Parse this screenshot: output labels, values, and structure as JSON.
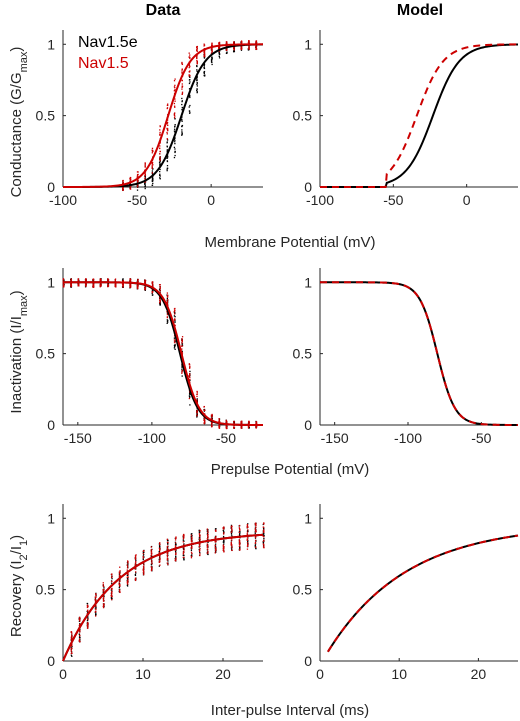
{
  "columns": {
    "left_title": "Data",
    "right_title": "Model"
  },
  "colors": {
    "nav15e": "#000000",
    "nav15": "#cc0000",
    "axis": "#262626"
  },
  "legend": {
    "items": [
      "Nav1.5e",
      "Nav1.5"
    ],
    "placement": "top-left of top-left panel"
  },
  "rows": [
    {
      "xlabel": "Membrane Potential (mV)"
    },
    {
      "xlabel": "Prepulse Potential (mV)"
    },
    {
      "xlabel": "Inter-pulse Interval (ms)"
    }
  ],
  "chart_data": [
    {
      "id": "activation-data",
      "type": "scatter",
      "title": "Data",
      "ylabel": "Conductance (G/G",
      "ylabel_sub": "max",
      "ylabel_suffix": ")",
      "xlim": [
        -100,
        35
      ],
      "ylim": [
        0,
        1.1
      ],
      "xticks": [
        -100,
        -50,
        0
      ],
      "yticks": [
        0,
        0.5,
        1
      ],
      "series": [
        {
          "name": "Nav1.5e",
          "fit": {
            "v_half": -20,
            "slope": 8
          },
          "scatter_x": [
            -60,
            -55,
            -50,
            -45,
            -40,
            -35,
            -30,
            -25,
            -20,
            -15,
            -10,
            -5,
            0,
            5,
            10,
            15,
            20,
            25,
            30
          ]
        },
        {
          "name": "Nav1.5",
          "fit": {
            "v_half": -29,
            "slope": 7.5
          },
          "scatter_x": [
            -60,
            -55,
            -50,
            -45,
            -40,
            -35,
            -30,
            -25,
            -20,
            -15,
            -10,
            -5,
            0,
            5,
            10,
            15,
            20,
            25,
            30
          ]
        }
      ]
    },
    {
      "id": "activation-model",
      "type": "line",
      "title": "Model",
      "xlim": [
        -100,
        35
      ],
      "ylim": [
        0,
        1.1
      ],
      "xticks": [
        -100,
        -50,
        0
      ],
      "yticks": [
        0,
        0.5,
        1
      ],
      "series": [
        {
          "name": "Nav1.5e",
          "dash": false,
          "fit": {
            "v_half": -23,
            "slope": 9,
            "onset": -55
          }
        },
        {
          "name": "Nav1.5",
          "dash": true,
          "fit": {
            "v_half": -34,
            "slope": 9,
            "onset": -55
          }
        }
      ]
    },
    {
      "id": "inactivation-data",
      "type": "scatter",
      "ylabel": "Inactivation (I/I",
      "ylabel_sub": "max",
      "ylabel_suffix": ")",
      "xlim": [
        -160,
        -25
      ],
      "ylim": [
        0,
        1.1
      ],
      "xticks": [
        -150,
        -100,
        -50
      ],
      "yticks": [
        0,
        0.5,
        1
      ],
      "series": [
        {
          "name": "Nav1.5e",
          "fit": {
            "v_half": -81,
            "slope": 6
          },
          "scatter_x": [
            -160,
            -155,
            -150,
            -145,
            -140,
            -135,
            -130,
            -125,
            -120,
            -115,
            -110,
            -105,
            -100,
            -95,
            -90,
            -85,
            -80,
            -75,
            -70,
            -65,
            -60,
            -55,
            -50,
            -45,
            -40,
            -35,
            -30
          ]
        },
        {
          "name": "Nav1.5",
          "fit": {
            "v_half": -80,
            "slope": 6
          },
          "scatter_x": [
            -160,
            -155,
            -150,
            -145,
            -140,
            -135,
            -130,
            -125,
            -120,
            -115,
            -110,
            -105,
            -100,
            -95,
            -90,
            -85,
            -80,
            -75,
            -70,
            -65,
            -60,
            -55,
            -50,
            -45,
            -40,
            -35,
            -30
          ]
        }
      ]
    },
    {
      "id": "inactivation-model",
      "type": "line",
      "xlim": [
        -160,
        -25
      ],
      "ylim": [
        0,
        1.1
      ],
      "xticks": [
        -150,
        -100,
        -50
      ],
      "yticks": [
        0,
        0.5,
        1
      ],
      "series": [
        {
          "name": "Nav1.5e",
          "dash": false,
          "fit": {
            "v_half": -80,
            "slope": 6
          }
        },
        {
          "name": "Nav1.5",
          "dash": true,
          "fit": {
            "v_half": -80,
            "slope": 6
          }
        }
      ]
    },
    {
      "id": "recovery-data",
      "type": "scatter",
      "ylabel": "Recovery (I",
      "ylabel_sub": "2",
      "ylabel_mid": "/I",
      "ylabel_sub2": "1",
      "ylabel_suffix": ")",
      "xlim": [
        0,
        25
      ],
      "ylim": [
        0,
        1.1
      ],
      "xticks": [
        0,
        10,
        20
      ],
      "yticks": [
        0,
        0.5,
        1
      ],
      "series": [
        {
          "name": "Nav1.5e",
          "fit": {
            "a": 0.91,
            "tau": 7,
            "x0": 0
          },
          "scatter_x": [
            1,
            2,
            3,
            4,
            5,
            6,
            7,
            8,
            9,
            10,
            11,
            12,
            13,
            14,
            15,
            16,
            17,
            18,
            19,
            20,
            21,
            22,
            23,
            24,
            25
          ]
        },
        {
          "name": "Nav1.5",
          "fit": {
            "a": 0.91,
            "tau": 7,
            "x0": 0
          },
          "scatter_x": [
            1,
            2,
            3,
            4,
            5,
            6,
            7,
            8,
            9,
            10,
            11,
            12,
            13,
            14,
            15,
            16,
            17,
            18,
            19,
            20,
            21,
            22,
            23,
            24,
            25
          ]
        }
      ]
    },
    {
      "id": "recovery-model",
      "type": "line",
      "xlim": [
        0,
        25
      ],
      "ylim": [
        0,
        1.1
      ],
      "xticks": [
        0,
        10,
        20
      ],
      "yticks": [
        0,
        0.5,
        1
      ],
      "series": [
        {
          "name": "Nav1.5e",
          "dash": false,
          "fit": {
            "a": 0.96,
            "tau": 10,
            "x0": 0.3
          }
        },
        {
          "name": "Nav1.5",
          "dash": true,
          "fit": {
            "a": 0.96,
            "tau": 10,
            "x0": 0.3
          }
        }
      ]
    }
  ]
}
